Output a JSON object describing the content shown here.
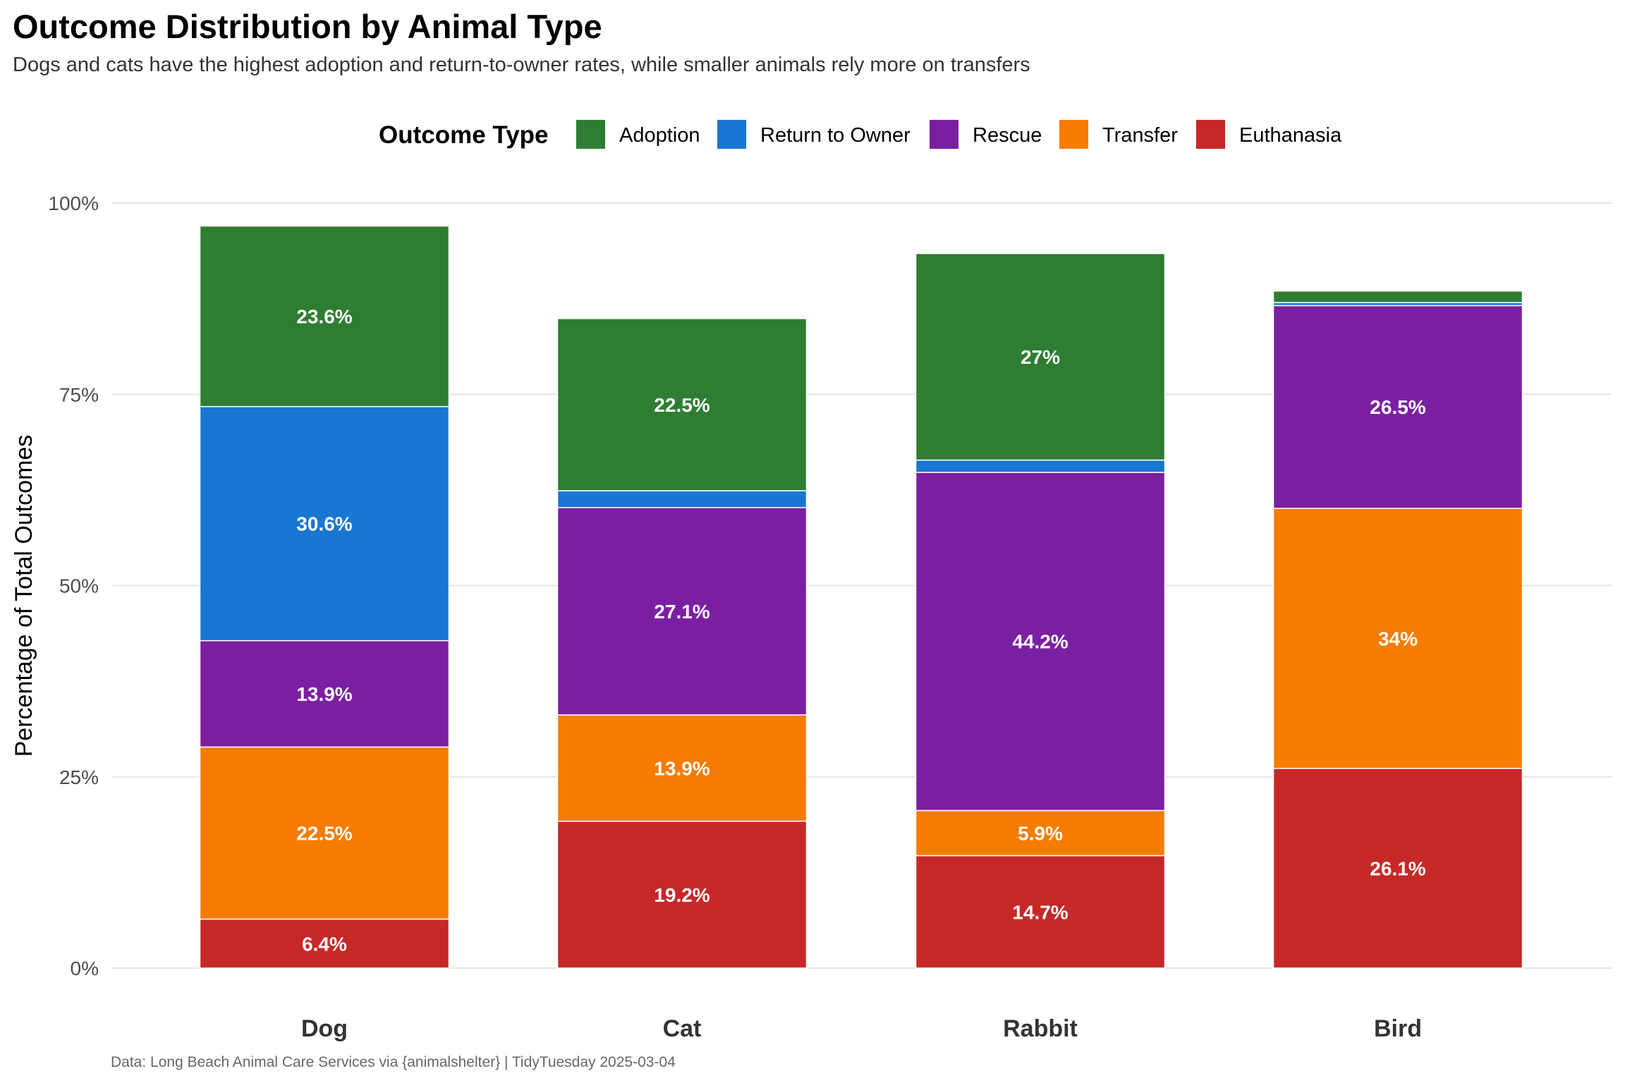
{
  "chart_data": {
    "type": "bar",
    "stacked": true,
    "title": "Outcome Distribution by Animal Type",
    "subtitle": "Dogs and cats have the highest adoption and return-to-owner rates, while smaller animals rely more on transfers",
    "xlabel": "",
    "ylabel": "Percentage of Total Outcomes",
    "ylim": [
      0,
      100
    ],
    "yticks": [
      "0%",
      "25%",
      "50%",
      "75%",
      "100%"
    ],
    "grid": "horizontal",
    "legend_title": "Outcome Type",
    "legend_position": "top",
    "categories": [
      "Dog",
      "Cat",
      "Rabbit",
      "Bird"
    ],
    "series": [
      {
        "name": "Euthanasia",
        "color": "#C62828",
        "values": [
          6.4,
          19.2,
          14.7,
          26.1
        ],
        "labels": [
          "6.4%",
          "19.2%",
          "14.7%",
          "26.1%"
        ]
      },
      {
        "name": "Transfer",
        "color": "#F57C00",
        "values": [
          22.5,
          13.9,
          5.9,
          34
        ],
        "labels": [
          "22.5%",
          "13.9%",
          "5.9%",
          "34%"
        ]
      },
      {
        "name": "Rescue",
        "color": "#7B1FA2",
        "values": [
          13.9,
          27.1,
          44.2,
          26.5
        ],
        "labels": [
          "13.9%",
          "27.1%",
          "44.2%",
          "26.5%"
        ]
      },
      {
        "name": "Return to Owner",
        "color": "#1976D2",
        "values": [
          30.6,
          2.2,
          1.6,
          0.4
        ],
        "labels": [
          "30.6%",
          "",
          "",
          ""
        ]
      },
      {
        "name": "Adoption",
        "color": "#2E7D32",
        "values": [
          23.6,
          22.5,
          27,
          1.5
        ],
        "labels": [
          "23.6%",
          "22.5%",
          "27%",
          ""
        ]
      }
    ],
    "legend_order": [
      "Adoption",
      "Return to Owner",
      "Rescue",
      "Transfer",
      "Euthanasia"
    ],
    "caption": "Data: Long Beach Animal Care Services via {animalshelter} | TidyTuesday 2025-03-04"
  }
}
